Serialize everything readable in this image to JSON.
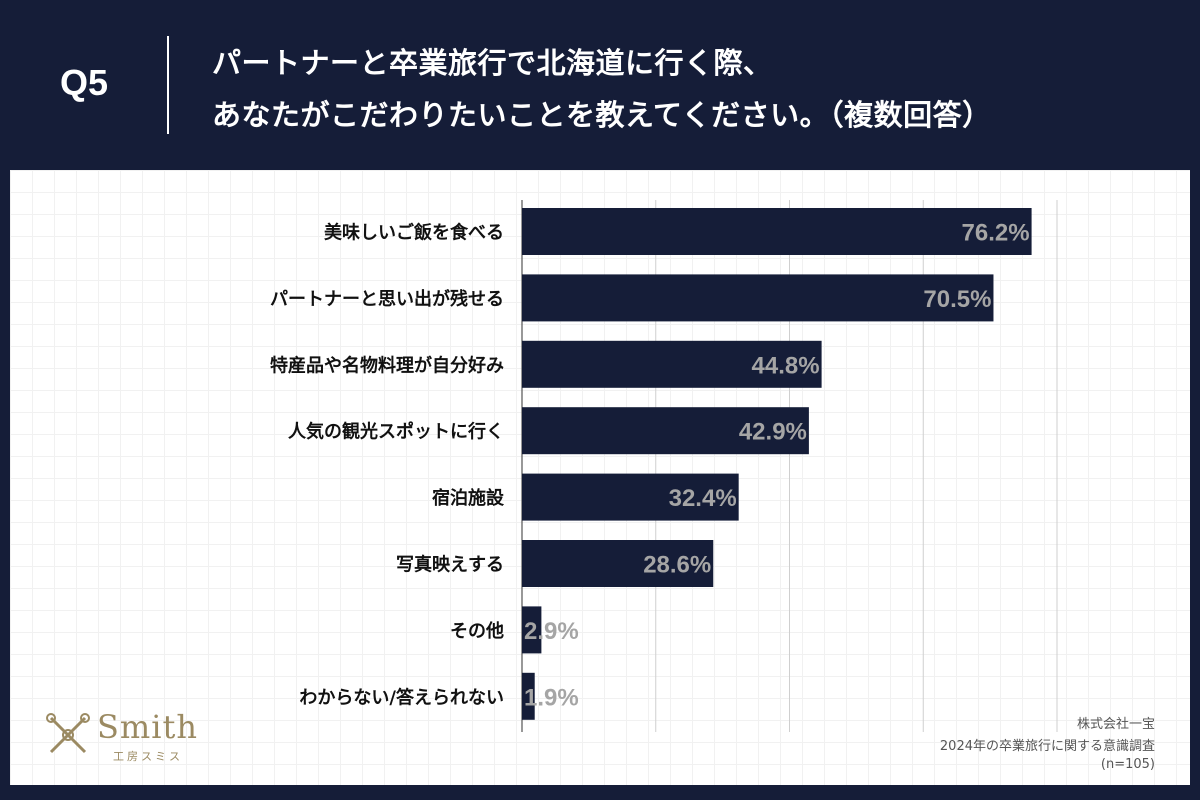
{
  "header": {
    "q_label": "Q5",
    "title_line1": "パートナーと卒業旅行で北海道に行く際、",
    "title_line2": "あなたがこだわりたいことを教えてください。（複数回答）"
  },
  "chart_data": {
    "type": "bar",
    "orientation": "horizontal",
    "title": "パートナーと卒業旅行で北海道に行く際、あなたがこだわりたいことを教えてください。（複数回答）",
    "categories": [
      "美味しいご飯を食べる",
      "パートナーと思い出が残せる",
      "特産品や名物料理が自分好み",
      "人気の観光スポットに行く",
      "宿泊施設",
      "写真映えする",
      "その他",
      "わからない/答えられない"
    ],
    "values": [
      76.2,
      70.5,
      44.8,
      42.9,
      32.4,
      28.6,
      2.9,
      1.9
    ],
    "labels": [
      "76.2%",
      "70.5%",
      "44.8%",
      "42.9%",
      "32.4%",
      "28.6%",
      "2.9%",
      "1.9%"
    ],
    "xlim": [
      0,
      80
    ],
    "unit": "%",
    "grid": true,
    "bar_color": "#151d38",
    "label_color": "#a5a5a5"
  },
  "source": {
    "company": "株式会社一宝",
    "survey": "2024年の卒業旅行に関する意識調査",
    "sample": "(n=105)"
  },
  "logo": {
    "word": "Smith",
    "sub": "工房スミス"
  },
  "colors": {
    "background": "#151d38",
    "panel": "#ffffff",
    "accent": "#9b8a62"
  }
}
